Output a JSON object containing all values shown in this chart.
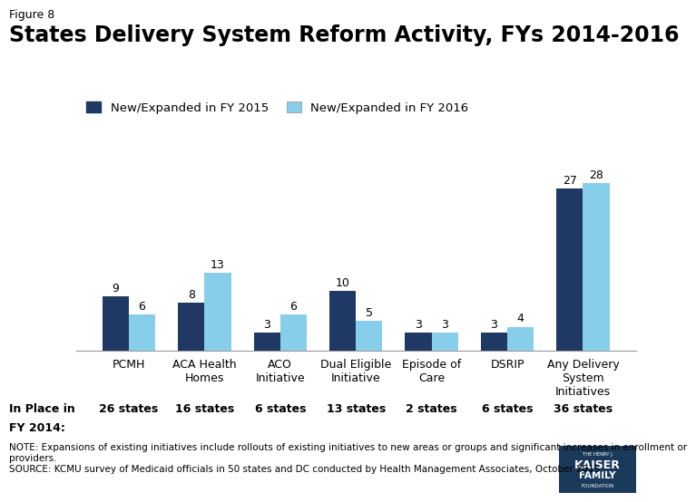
{
  "categories": [
    "PCMH",
    "ACA Health\nHomes",
    "ACO\nInitiative",
    "Dual Eligible\nInitiative",
    "Episode of\nCare",
    "DSRIP",
    "Any Delivery\nSystem\nInitiatives"
  ],
  "fy2015_values": [
    9,
    8,
    3,
    10,
    3,
    3,
    27
  ],
  "fy2016_values": [
    6,
    13,
    6,
    5,
    3,
    4,
    28
  ],
  "in_place_labels": [
    "26 states",
    "16 states",
    "6 states",
    "13 states",
    "2 states",
    "6 states",
    "36 states"
  ],
  "color_2015": "#1f3864",
  "color_2016": "#87ceeb",
  "title": "States Delivery System Reform Activity, FYs 2014-2016",
  "figure_label": "Figure 8",
  "legend_2015": "New/Expanded in FY 2015",
  "legend_2016": "New/Expanded in FY 2016",
  "in_place_prefix_line1": "In Place in",
  "in_place_prefix_line2": "FY 2014:",
  "note_text": "NOTE: Expansions of existing initiatives include rollouts of existing initiatives to new areas or groups and significant increases in enrollment or\nproviders.\nSOURCE: KCMU survey of Medicaid officials in 50 states and DC conducted by Health Management Associates, October 2015.",
  "ylim": [
    0,
    35
  ],
  "bar_width": 0.35,
  "background_color": "#ffffff",
  "logo_color": "#1a3a5c",
  "logo_text1": "THE HENRY J.",
  "logo_text2": "KAISER",
  "logo_text3": "FAMILY",
  "logo_text4": "FOUNDATION"
}
